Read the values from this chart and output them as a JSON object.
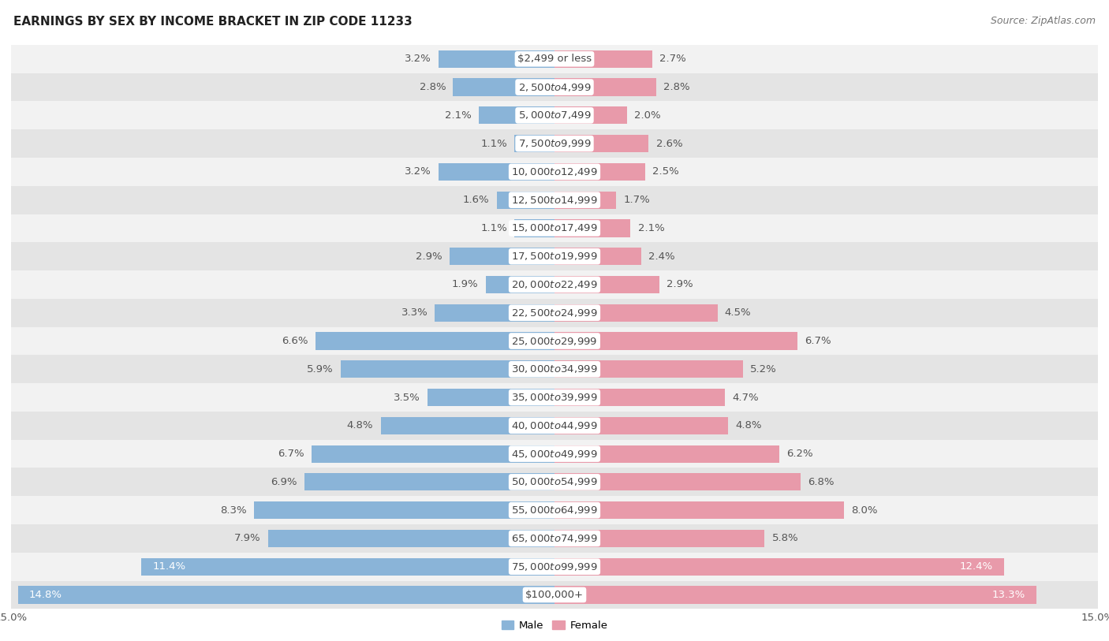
{
  "title": "EARNINGS BY SEX BY INCOME BRACKET IN ZIP CODE 11233",
  "source": "Source: ZipAtlas.com",
  "categories": [
    "$2,499 or less",
    "$2,500 to $4,999",
    "$5,000 to $7,499",
    "$7,500 to $9,999",
    "$10,000 to $12,499",
    "$12,500 to $14,999",
    "$15,000 to $17,499",
    "$17,500 to $19,999",
    "$20,000 to $22,499",
    "$22,500 to $24,999",
    "$25,000 to $29,999",
    "$30,000 to $34,999",
    "$35,000 to $39,999",
    "$40,000 to $44,999",
    "$45,000 to $49,999",
    "$50,000 to $54,999",
    "$55,000 to $64,999",
    "$65,000 to $74,999",
    "$75,000 to $99,999",
    "$100,000+"
  ],
  "male_values": [
    3.2,
    2.8,
    2.1,
    1.1,
    3.2,
    1.6,
    1.1,
    2.9,
    1.9,
    3.3,
    6.6,
    5.9,
    3.5,
    4.8,
    6.7,
    6.9,
    8.3,
    7.9,
    11.4,
    14.8
  ],
  "female_values": [
    2.7,
    2.8,
    2.0,
    2.6,
    2.5,
    1.7,
    2.1,
    2.4,
    2.9,
    4.5,
    6.7,
    5.2,
    4.7,
    4.8,
    6.2,
    6.8,
    8.0,
    5.8,
    12.4,
    13.3
  ],
  "male_color": "#8ab4d8",
  "female_color": "#e89aaa",
  "row_color_even": "#f2f2f2",
  "row_color_odd": "#e4e4e4",
  "bg_color": "#ffffff",
  "axis_max": 15.0,
  "label_fontsize": 9.5,
  "title_fontsize": 11,
  "source_fontsize": 9,
  "legend_labels": [
    "Male",
    "Female"
  ],
  "inside_label_threshold": 10.0,
  "inside_label_color": "#ffffff",
  "outside_label_color": "#555555"
}
